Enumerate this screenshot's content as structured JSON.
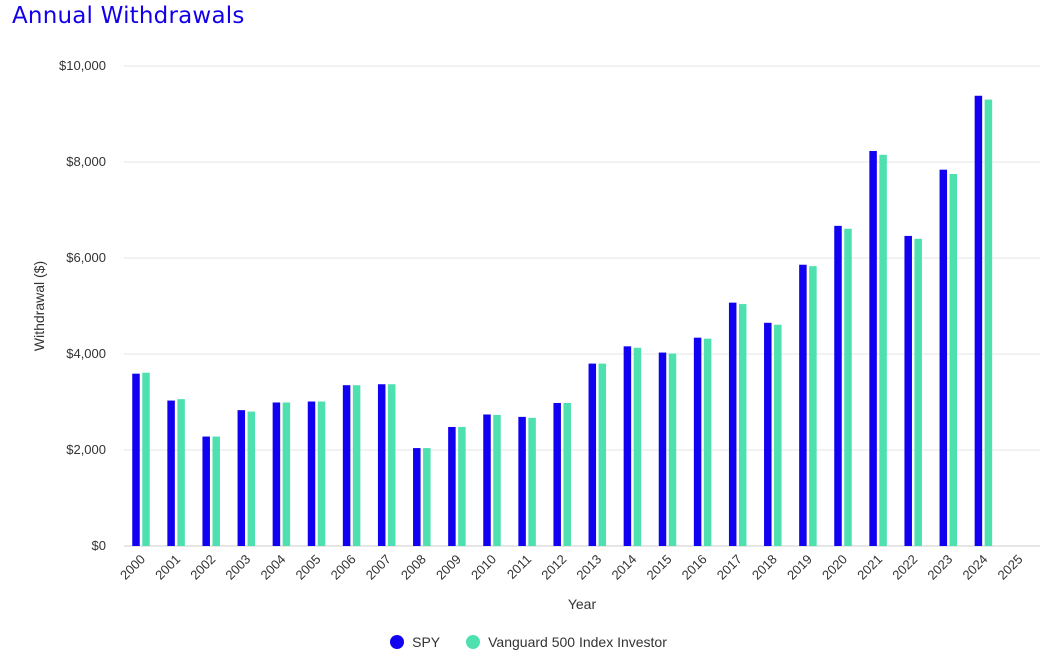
{
  "colors": {
    "title": "#1200e8",
    "spy": "#1200f0",
    "vanguard": "#4fe0b0",
    "grid": "#e6e6e6",
    "axis": "#cccccc"
  },
  "chart_data": {
    "type": "bar",
    "title": "Annual Withdrawals",
    "xlabel": "Year",
    "ylabel": "Withdrawal ($)",
    "ylim": [
      0,
      10000
    ],
    "yticks": [
      0,
      2000,
      4000,
      6000,
      8000,
      10000
    ],
    "ytick_labels": [
      "$0",
      "$2,000",
      "$4,000",
      "$6,000",
      "$8,000",
      "$10,000"
    ],
    "grid": true,
    "legend_position": "bottom-center",
    "categories": [
      "2000",
      "2001",
      "2002",
      "2003",
      "2004",
      "2005",
      "2006",
      "2007",
      "2008",
      "2009",
      "2010",
      "2011",
      "2012",
      "2013",
      "2014",
      "2015",
      "2016",
      "2017",
      "2018",
      "2019",
      "2020",
      "2021",
      "2022",
      "2023",
      "2024",
      "2025"
    ],
    "series": [
      {
        "name": "SPY",
        "color": "#1200f0",
        "values": [
          3590,
          3030,
          2280,
          2830,
          2990,
          3010,
          3350,
          3370,
          2040,
          2480,
          2740,
          2690,
          2980,
          3800,
          4160,
          4030,
          4340,
          5070,
          4650,
          5860,
          6670,
          8230,
          6460,
          7840,
          9380,
          null
        ]
      },
      {
        "name": "Vanguard 500 Index Investor",
        "color": "#4fe0b0",
        "values": [
          3610,
          3060,
          2280,
          2800,
          2990,
          3010,
          3350,
          3370,
          2040,
          2480,
          2730,
          2670,
          2980,
          3800,
          4130,
          4010,
          4320,
          5040,
          4610,
          5830,
          6610,
          8150,
          6400,
          7750,
          9300,
          null
        ]
      }
    ]
  }
}
